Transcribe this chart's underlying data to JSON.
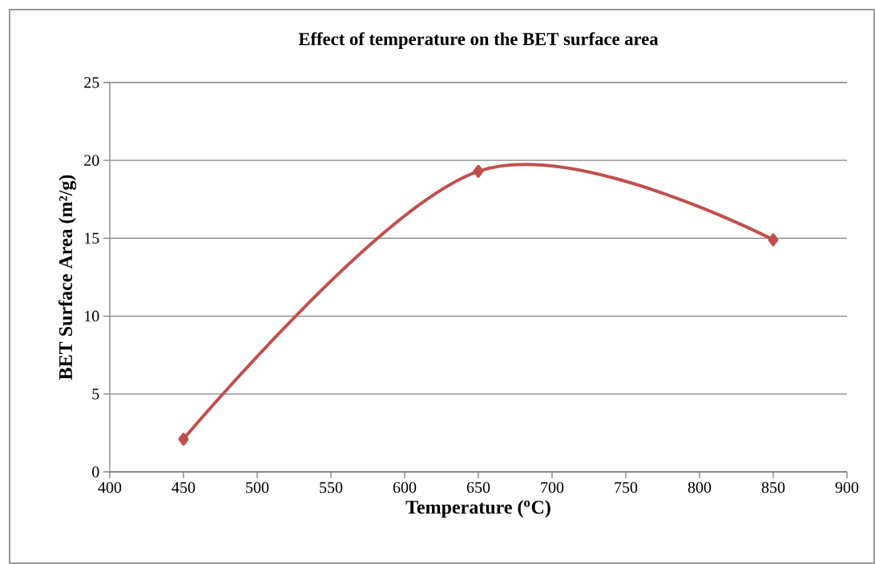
{
  "chart_data": {
    "type": "line",
    "title": "Effect of temperature on the BET surface area",
    "xlabel": "Temperature ($^{o}$C)",
    "ylabel": "BET Surface Area (m²/g)",
    "x": [
      450,
      650,
      850
    ],
    "series": [
      {
        "color": "#c0504d",
        "values": [
          2.1,
          19.3,
          14.9
        ]
      }
    ],
    "xlim": [
      400,
      900
    ],
    "xticks": [
      400,
      450,
      500,
      550,
      600,
      650,
      700,
      750,
      800,
      850,
      900
    ],
    "ylim": [
      0,
      25
    ],
    "yticks": [
      0,
      5,
      10,
      15,
      20,
      25
    ],
    "grid": "y",
    "marker": "diamond",
    "line_style": "solid"
  }
}
